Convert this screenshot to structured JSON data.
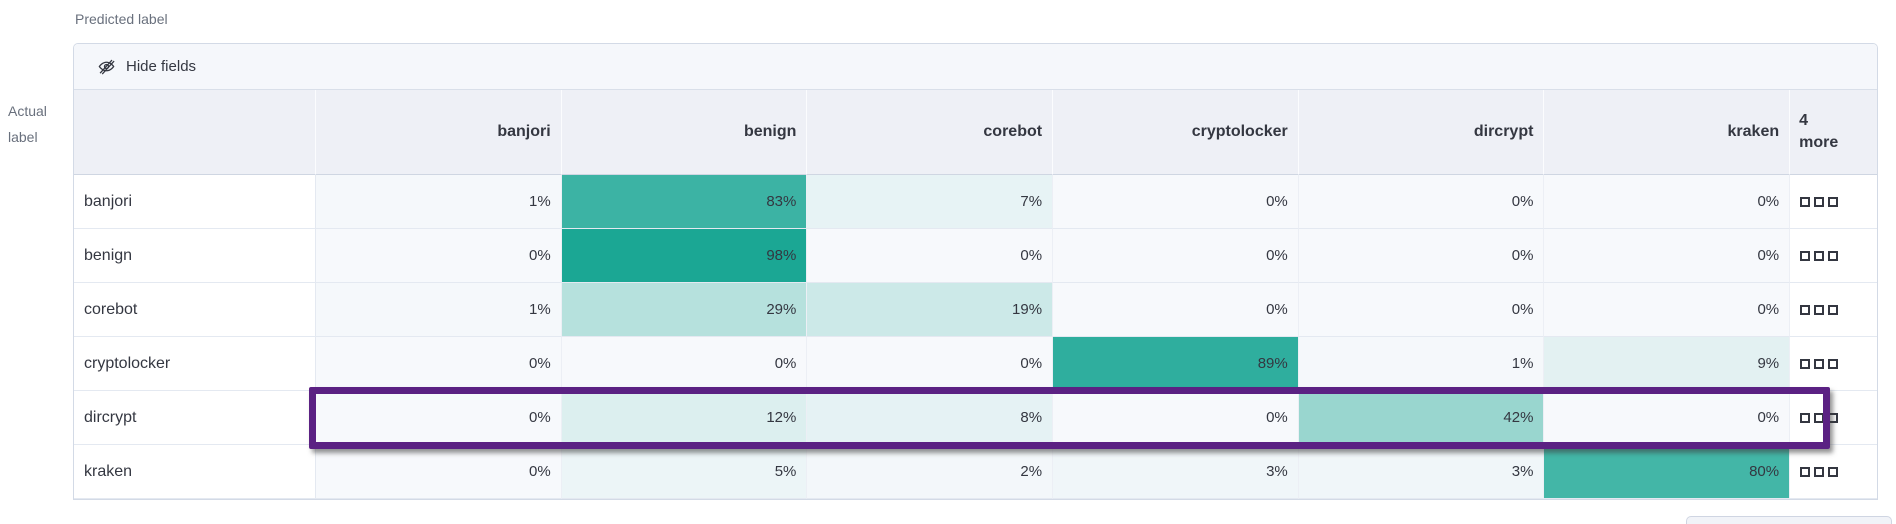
{
  "toolbar": {
    "hide_fields_label": "Hide fields"
  },
  "colors": {
    "accent_teal": "#16a592",
    "highlight_purple": "#5b2183",
    "header_bg": "#eef0f6",
    "toolbar_bg": "#f5f7fb",
    "outer_border": "#d3dae6",
    "text": "#343741",
    "muted_text": "#69707d"
  },
  "icons": {
    "toolbar_icon": "eye-slash-icon",
    "more_cell_icon": "boxes-horizontal-icon"
  },
  "chart_data": {
    "type": "heatmap",
    "xlabel": "Predicted label",
    "ylabel": "Actual label",
    "columns": [
      "banjori",
      "benign",
      "corebot",
      "cryptolocker",
      "dircrypt",
      "kraken"
    ],
    "more_columns_label": "4 more",
    "value_suffix": "%",
    "rows": [
      {
        "label": "banjori",
        "values": [
          1,
          83,
          7,
          0,
          0,
          0
        ]
      },
      {
        "label": "benign",
        "values": [
          0,
          98,
          0,
          0,
          0,
          0
        ]
      },
      {
        "label": "corebot",
        "values": [
          1,
          29,
          19,
          0,
          0,
          0
        ]
      },
      {
        "label": "cryptolocker",
        "values": [
          0,
          0,
          0,
          89,
          1,
          9
        ]
      },
      {
        "label": "dircrypt",
        "values": [
          0,
          12,
          8,
          0,
          42,
          0
        ]
      },
      {
        "label": "kraken",
        "values": [
          0,
          5,
          2,
          3,
          3,
          80
        ]
      }
    ],
    "highlighted_row": "dircrypt",
    "heat_scale": {
      "zero_color": "#f7f9fc",
      "one_color": "#16a592"
    },
    "legend": "none",
    "grid": "on"
  }
}
